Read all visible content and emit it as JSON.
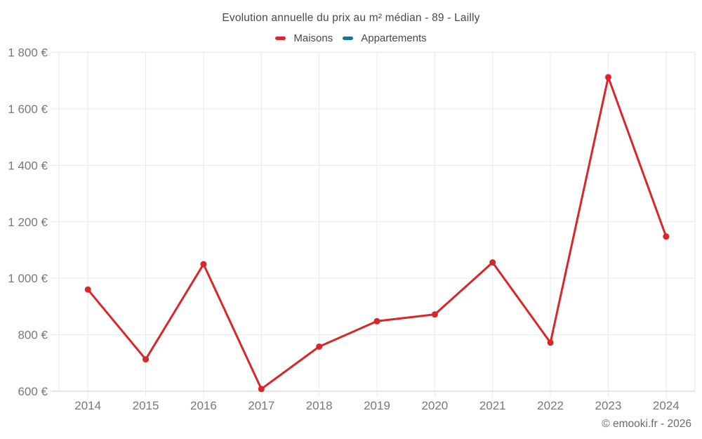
{
  "page": {
    "copyright": "© emooki.fr - 2026",
    "background": "#ffffff"
  },
  "colors": {
    "grid": "#e9e9e9",
    "axis_line": "#cccccc",
    "tick_text": "#77787a",
    "title_text": "#47484a",
    "copyright_text": "#6b6b6b"
  },
  "chart_data": {
    "type": "line",
    "title": "Evolution annuelle du prix au m² médian - 89 - Lailly",
    "xlabel": "",
    "ylabel": "",
    "categories": [
      "2014",
      "2015",
      "2016",
      "2017",
      "2018",
      "2019",
      "2020",
      "2021",
      "2022",
      "2023",
      "2024"
    ],
    "series": [
      {
        "name": "Maisons",
        "color": "#d9262b",
        "values": [
          960,
          713,
          1050,
          608,
          758,
          848,
          872,
          1056,
          772,
          1712,
          1148
        ]
      },
      {
        "name": "Appartements",
        "color": "#19719e",
        "values": []
      }
    ],
    "ylim": [
      600,
      1800
    ],
    "yticks": [
      600,
      800,
      1000,
      1200,
      1400,
      1600,
      1800
    ],
    "ytick_labels": [
      "600 €",
      "800 €",
      "1 000 €",
      "1 200 €",
      "1 400 €",
      "1 600 €",
      "1 800 €"
    ],
    "grid": true,
    "legend_position": "top"
  }
}
